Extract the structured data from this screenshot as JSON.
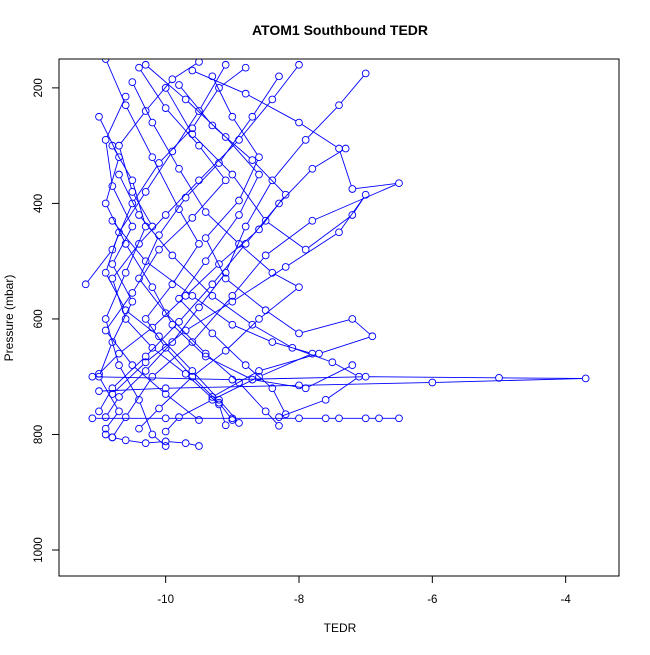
{
  "chart_data": {
    "type": "line",
    "title": "ATOM1 Southbound TEDR",
    "xlabel": "TEDR",
    "ylabel": "Pressure (mbar)",
    "xlim": [
      -11.6,
      -3.2
    ],
    "ylim": [
      1045,
      150
    ],
    "y_reversed": true,
    "xticks": [
      -10,
      -8,
      -6,
      -4
    ],
    "yticks": [
      200,
      400,
      600,
      800,
      1000
    ],
    "marker": "open-circle",
    "grid": false,
    "legend": "none",
    "series_color": "#0000ff",
    "series": [
      {
        "name": "",
        "points": [
          [
            -10.9,
            150
          ],
          [
            -10.6,
            230
          ],
          [
            -10.2,
            320
          ],
          [
            -9.8,
            410
          ],
          [
            -9.5,
            470
          ],
          [
            -9.9,
            540
          ],
          [
            -10.3,
            600
          ],
          [
            -10.0,
            650
          ],
          [
            -9.6,
            700
          ],
          [
            -9.2,
            745
          ],
          [
            -9.0,
            775
          ]
        ]
      },
      {
        "name": "",
        "points": [
          [
            -10.3,
            160
          ],
          [
            -9.7,
            220
          ],
          [
            -9.1,
            285
          ],
          [
            -8.6,
            350
          ],
          [
            -8.9,
            420
          ],
          [
            -9.4,
            500
          ],
          [
            -9.8,
            565
          ],
          [
            -9.3,
            625
          ],
          [
            -8.8,
            680
          ],
          [
            -8.4,
            720
          ],
          [
            -8.2,
            765
          ]
        ]
      },
      {
        "name": "",
        "points": [
          [
            -9.6,
            170
          ],
          [
            -8.8,
            210
          ],
          [
            -8.0,
            260
          ],
          [
            -7.4,
            305
          ],
          [
            -7.2,
            375
          ],
          [
            -6.5,
            365
          ],
          [
            -7.8,
            430
          ],
          [
            -8.5,
            490
          ],
          [
            -9.0,
            560
          ],
          [
            -9.6,
            640
          ],
          [
            -10.2,
            700
          ],
          [
            -10.6,
            770
          ],
          [
            -10.8,
            805
          ]
        ]
      },
      {
        "name": "",
        "points": [
          [
            -11.2,
            540
          ],
          [
            -10.8,
            480
          ],
          [
            -10.5,
            400
          ],
          [
            -10.1,
            330
          ],
          [
            -9.6,
            270
          ],
          [
            -9.2,
            200
          ],
          [
            -8.8,
            165
          ]
        ]
      },
      {
        "name": "",
        "points": [
          [
            -10.8,
            300
          ],
          [
            -10.5,
            360
          ],
          [
            -10.3,
            440
          ],
          [
            -10.6,
            520
          ],
          [
            -10.9,
            600
          ],
          [
            -10.7,
            680
          ],
          [
            -10.4,
            740
          ],
          [
            -10.2,
            800
          ],
          [
            -10.0,
            820
          ]
        ]
      },
      {
        "name": "",
        "points": [
          [
            -8.3,
            180
          ],
          [
            -8.7,
            250
          ],
          [
            -9.2,
            330
          ],
          [
            -9.7,
            390
          ],
          [
            -10.1,
            455
          ],
          [
            -10.4,
            530
          ],
          [
            -10.0,
            590
          ],
          [
            -9.4,
            660
          ],
          [
            -8.9,
            710
          ],
          [
            -8.5,
            760
          ],
          [
            -8.3,
            785
          ]
        ]
      },
      {
        "name": "",
        "points": [
          [
            -7.0,
            175
          ],
          [
            -7.4,
            230
          ],
          [
            -7.9,
            290
          ],
          [
            -8.4,
            360
          ],
          [
            -8.8,
            440
          ],
          [
            -9.1,
            520
          ],
          [
            -9.5,
            580
          ],
          [
            -9.9,
            640
          ],
          [
            -10.3,
            690
          ],
          [
            -10.7,
            735
          ],
          [
            -10.9,
            770
          ]
        ]
      },
      {
        "name": "",
        "points": [
          [
            -10.5,
            190
          ],
          [
            -10.2,
            260
          ],
          [
            -9.8,
            340
          ],
          [
            -9.4,
            415
          ],
          [
            -8.9,
            470
          ],
          [
            -8.4,
            520
          ],
          [
            -8.0,
            545
          ],
          [
            -8.6,
            600
          ],
          [
            -9.1,
            655
          ],
          [
            -9.6,
            700
          ],
          [
            -10.1,
            755
          ],
          [
            -10.4,
            790
          ]
        ]
      },
      {
        "name": "",
        "points": [
          [
            -11.0,
            250
          ],
          [
            -10.7,
            320
          ],
          [
            -10.9,
            400
          ],
          [
            -10.6,
            470
          ],
          [
            -10.2,
            545
          ],
          [
            -9.9,
            610
          ],
          [
            -9.4,
            665
          ],
          [
            -8.7,
            705
          ],
          [
            -7.9,
            720
          ],
          [
            -7.2,
            680
          ]
        ]
      },
      {
        "name": "",
        "points": [
          [
            -9.1,
            160
          ],
          [
            -9.5,
            240
          ],
          [
            -9.9,
            310
          ],
          [
            -10.3,
            380
          ],
          [
            -10.7,
            450
          ],
          [
            -10.9,
            520
          ],
          [
            -10.6,
            585
          ],
          [
            -10.1,
            630
          ],
          [
            -9.6,
            690
          ],
          [
            -9.2,
            740
          ],
          [
            -8.9,
            780
          ]
        ]
      },
      {
        "name": "",
        "points": [
          [
            -10.7,
            350
          ],
          [
            -10.4,
            420
          ],
          [
            -9.9,
            490
          ],
          [
            -9.3,
            560
          ],
          [
            -8.7,
            610
          ],
          [
            -8.1,
            650
          ],
          [
            -7.5,
            675
          ],
          [
            -7.1,
            700
          ],
          [
            -7.6,
            740
          ],
          [
            -8.3,
            770
          ]
        ]
      },
      {
        "name": "",
        "points": [
          [
            -11.1,
            700
          ],
          [
            -9.0,
            705
          ],
          [
            -7.0,
            700
          ],
          [
            -5.0,
            702
          ],
          [
            -3.7,
            703
          ],
          [
            -6.0,
            710
          ],
          [
            -8.0,
            715
          ],
          [
            -10.0,
            720
          ],
          [
            -11.0,
            725
          ]
        ]
      },
      {
        "name": "",
        "points": [
          [
            -11.1,
            772
          ],
          [
            -10.0,
            772
          ],
          [
            -9.0,
            772
          ],
          [
            -8.0,
            772
          ],
          [
            -7.6,
            772
          ],
          [
            -7.4,
            772
          ],
          [
            -7.0,
            772
          ],
          [
            -6.8,
            772
          ],
          [
            -6.5,
            772
          ]
        ]
      },
      {
        "name": "",
        "points": [
          [
            -10.9,
            800
          ],
          [
            -10.8,
            805
          ],
          [
            -10.6,
            810
          ],
          [
            -10.3,
            815
          ],
          [
            -10.0,
            812
          ],
          [
            -9.7,
            815
          ],
          [
            -9.5,
            820
          ]
        ]
      },
      {
        "name": "",
        "points": [
          [
            -10.0,
            200
          ],
          [
            -9.6,
            280
          ],
          [
            -9.0,
            350
          ],
          [
            -8.5,
            430
          ],
          [
            -7.9,
            480
          ],
          [
            -7.2,
            420
          ],
          [
            -7.0,
            385
          ],
          [
            -7.4,
            450
          ],
          [
            -8.2,
            510
          ],
          [
            -9.0,
            570
          ],
          [
            -9.7,
            620
          ],
          [
            -10.3,
            675
          ],
          [
            -10.8,
            730
          ]
        ]
      },
      {
        "name": "",
        "points": [
          [
            -10.6,
            215
          ],
          [
            -10.9,
            290
          ],
          [
            -10.8,
            370
          ],
          [
            -10.5,
            440
          ],
          [
            -10.8,
            505
          ],
          [
            -10.5,
            570
          ],
          [
            -10.8,
            640
          ],
          [
            -11.0,
            700
          ],
          [
            -10.7,
            760
          ],
          [
            -10.9,
            790
          ]
        ]
      },
      {
        "name": "",
        "points": [
          [
            -9.3,
            180
          ],
          [
            -9.0,
            250
          ],
          [
            -8.6,
            320
          ],
          [
            -8.9,
            395
          ],
          [
            -9.4,
            460
          ],
          [
            -9.1,
            530
          ],
          [
            -8.5,
            585
          ],
          [
            -8.0,
            625
          ],
          [
            -7.2,
            600
          ],
          [
            -6.9,
            630
          ],
          [
            -7.7,
            660
          ],
          [
            -8.6,
            690
          ],
          [
            -9.3,
            735
          ]
        ]
      },
      {
        "name": "",
        "points": [
          [
            -10.4,
            165
          ],
          [
            -10.0,
            235
          ],
          [
            -9.5,
            300
          ],
          [
            -9.1,
            360
          ],
          [
            -9.6,
            425
          ],
          [
            -10.1,
            480
          ],
          [
            -10.5,
            555
          ],
          [
            -10.9,
            620
          ],
          [
            -10.5,
            680
          ],
          [
            -10.0,
            730
          ],
          [
            -9.5,
            775
          ]
        ]
      },
      {
        "name": "",
        "points": [
          [
            -8.0,
            160
          ],
          [
            -8.4,
            220
          ],
          [
            -8.9,
            290
          ],
          [
            -9.5,
            360
          ],
          [
            -10.0,
            420
          ],
          [
            -10.4,
            470
          ],
          [
            -10.8,
            530
          ],
          [
            -10.6,
            600
          ],
          [
            -10.2,
            650
          ],
          [
            -9.7,
            695
          ],
          [
            -9.2,
            748
          ],
          [
            -9.1,
            784
          ]
        ]
      },
      {
        "name": "",
        "points": [
          [
            -10.8,
            430
          ],
          [
            -10.3,
            500
          ],
          [
            -9.6,
            560
          ],
          [
            -9.0,
            610
          ],
          [
            -8.4,
            640
          ],
          [
            -7.8,
            660
          ],
          [
            -8.6,
            700
          ],
          [
            -9.3,
            740
          ],
          [
            -9.8,
            770
          ],
          [
            -10.0,
            795
          ]
        ]
      },
      {
        "name": "",
        "points": [
          [
            -9.8,
            195
          ],
          [
            -9.3,
            265
          ],
          [
            -8.7,
            325
          ],
          [
            -8.2,
            385
          ],
          [
            -8.6,
            445
          ],
          [
            -9.2,
            505
          ],
          [
            -9.7,
            560
          ],
          [
            -10.2,
            615
          ],
          [
            -10.7,
            660
          ],
          [
            -11.0,
            695
          ]
        ]
      },
      {
        "name": "",
        "points": [
          [
            -10.2,
            440
          ],
          [
            -10.5,
            380
          ],
          [
            -10.7,
            300
          ],
          [
            -10.3,
            240
          ],
          [
            -9.9,
            185
          ],
          [
            -9.5,
            155
          ]
        ]
      },
      {
        "name": "",
        "points": [
          [
            -7.3,
            305
          ],
          [
            -7.8,
            340
          ],
          [
            -8.3,
            400
          ],
          [
            -8.8,
            470
          ],
          [
            -9.3,
            540
          ],
          [
            -9.8,
            605
          ],
          [
            -10.3,
            665
          ],
          [
            -10.8,
            720
          ],
          [
            -11.0,
            760
          ]
        ]
      }
    ]
  }
}
